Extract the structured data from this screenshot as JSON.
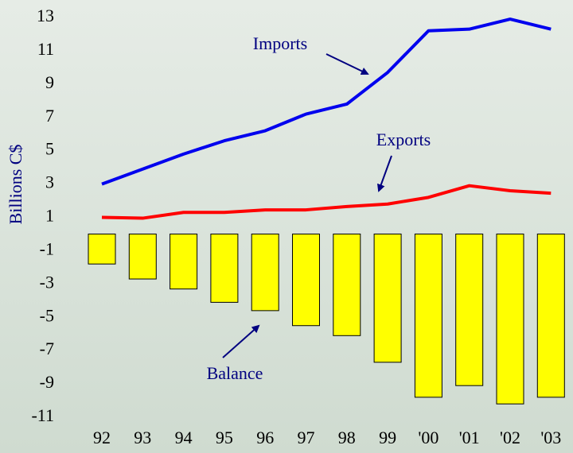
{
  "chart_data": {
    "type": "combo",
    "ylabel": "Billions C$",
    "categories": [
      "92",
      "93",
      "94",
      "95",
      "96",
      "97",
      "98",
      "99",
      "'00",
      "'01",
      "'02",
      "'03"
    ],
    "series": [
      {
        "name": "Imports",
        "type": "line",
        "color": "#0000ee",
        "values": [
          3.0,
          3.9,
          4.8,
          5.6,
          6.2,
          7.2,
          7.8,
          9.7,
          12.2,
          12.3,
          12.9,
          12.3
        ]
      },
      {
        "name": "Exports",
        "type": "line",
        "color": "#ff0000",
        "values": [
          1.0,
          0.95,
          1.3,
          1.3,
          1.45,
          1.45,
          1.65,
          1.8,
          2.2,
          2.9,
          2.6,
          2.45
        ]
      },
      {
        "name": "Balance",
        "type": "bar",
        "color": "#ffff00",
        "values": [
          -1.8,
          -2.7,
          -3.3,
          -4.1,
          -4.6,
          -5.5,
          -6.1,
          -7.7,
          -9.8,
          -9.1,
          -10.2,
          -9.8
        ]
      }
    ],
    "ylim": [
      -11,
      13
    ],
    "yticks": [
      -11,
      -9,
      -7,
      -5,
      -3,
      -1,
      1,
      3,
      5,
      7,
      9,
      11,
      13
    ],
    "grid": false
  }
}
